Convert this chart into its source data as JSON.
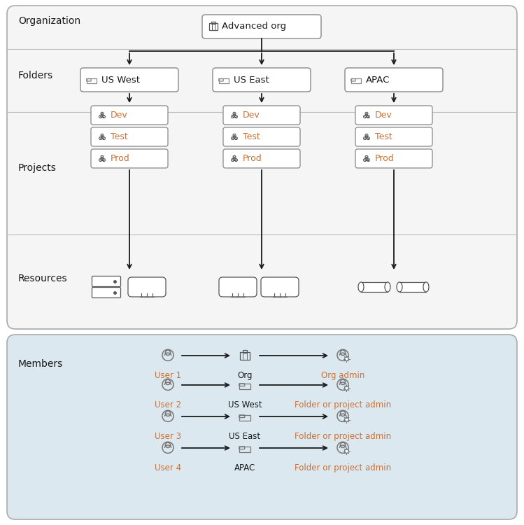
{
  "folders": [
    "US West",
    "US East",
    "APAC"
  ],
  "projects": [
    "Dev",
    "Test",
    "Prod"
  ],
  "org_label": "Advanced org",
  "member_rows": [
    {
      "user": "User 1",
      "target": "Org",
      "role": "Org admin"
    },
    {
      "user": "User 2",
      "target": "US West",
      "role": "Folder or project admin"
    },
    {
      "user": "User 3",
      "target": "US East",
      "role": "Folder or project admin"
    },
    {
      "user": "User 4",
      "target": "APAC",
      "role": "Folder or project admin"
    }
  ],
  "text_orange": "#c87137",
  "text_dark": "#1a1a1a",
  "text_label": "#1a1a1a",
  "box_border": "#888888",
  "box_fill": "#ffffff",
  "arrow_color": "#1a1a1a",
  "panel_top_bg": "#f5f5f5",
  "panel_bottom_bg": "#dce8f0",
  "panel_border": "#aaaaaa",
  "divider_color": "#bbbbbb",
  "icon_color": "#555555",
  "folder_icon_color": "#888888"
}
